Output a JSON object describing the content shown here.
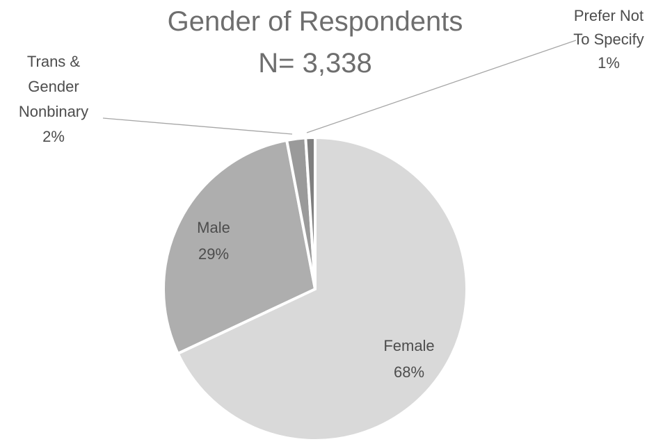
{
  "chart_data": {
    "type": "pie",
    "title": "Gender of Respondents",
    "subtitle": "N= 3,338",
    "slices": [
      {
        "name": "Female",
        "value": 68,
        "label_lines": [
          "Female",
          "68%"
        ],
        "color": "#d9d9d9"
      },
      {
        "name": "Male",
        "value": 29,
        "label_lines": [
          "Male",
          "29%"
        ],
        "color": "#aeaeae"
      },
      {
        "name": "Trans & Gender Nonbinary",
        "value": 2,
        "label_lines": [
          "Trans &",
          "Gender",
          "Nonbinary",
          "2%"
        ],
        "color": "#9a9a9a"
      },
      {
        "name": "Prefer Not To Specify",
        "value": 1,
        "label_lines": [
          "Prefer Not",
          "To Specify",
          "1%"
        ],
        "color": "#7f7f7f"
      }
    ],
    "legend": "none",
    "data_labels": "category-and-percent"
  }
}
